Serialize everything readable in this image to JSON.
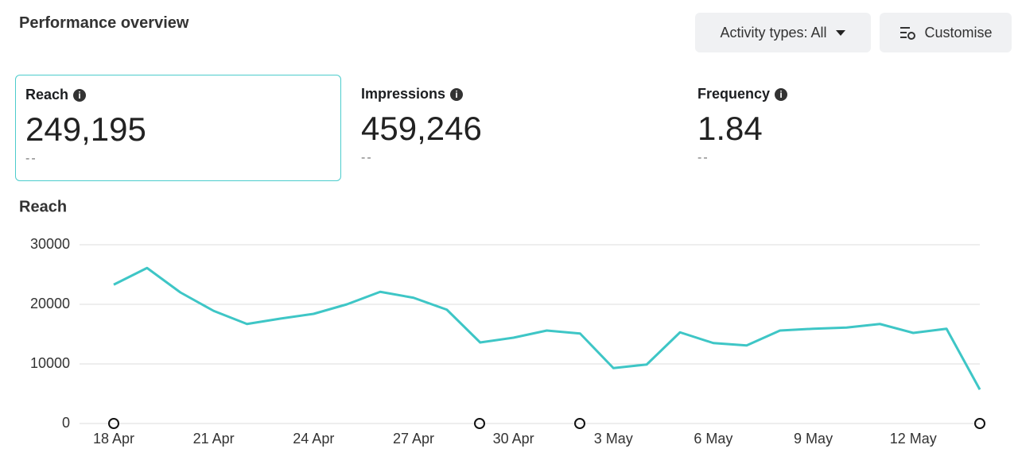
{
  "header": {
    "title": "Performance overview",
    "buttons": [
      "Activity types: All",
      "Customise"
    ]
  },
  "metrics": [
    {
      "label": "Reach",
      "value": "249,195",
      "change": "--"
    },
    {
      "label": "Impressions",
      "value": "459,246",
      "change": "--"
    },
    {
      "label": "Frequency",
      "value": "1.84",
      "change": "--"
    }
  ],
  "chart_data": {
    "type": "line",
    "title": "Reach",
    "categories": [
      "18 Apr",
      null,
      null,
      "21 Apr",
      null,
      null,
      "24 Apr",
      null,
      null,
      "27 Apr",
      null,
      null,
      "30 Apr",
      null,
      null,
      "3 May",
      null,
      null,
      "6 May",
      null,
      null,
      "9 May",
      null,
      null,
      "12 May",
      null,
      null
    ],
    "values": [
      23300,
      26100,
      22000,
      18900,
      16700,
      17600,
      18400,
      20000,
      22100,
      21100,
      19100,
      13600,
      14400,
      15600,
      15100,
      9300,
      9900,
      15300,
      13500,
      13100,
      15600,
      15900,
      16100,
      16700,
      15200,
      15900,
      5700
    ],
    "color": "#3ec6c6",
    "ylim": [
      0,
      30000
    ],
    "yticks": [
      0,
      10000,
      20000,
      30000
    ],
    "grid": true
  }
}
